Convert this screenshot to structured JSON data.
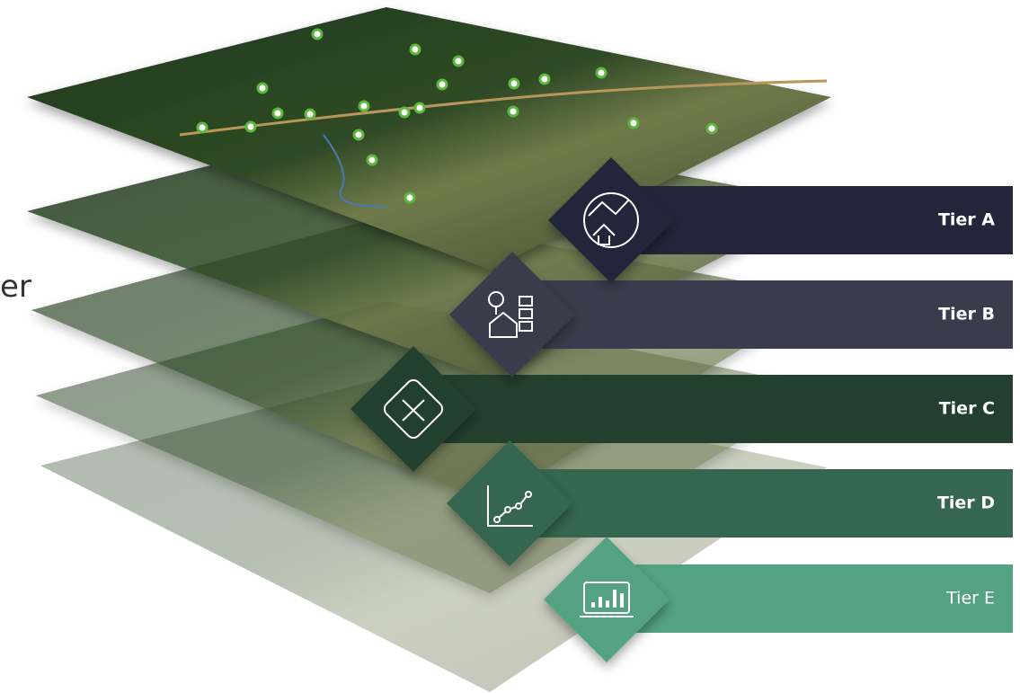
{
  "side_text": "er",
  "tiers": [
    {
      "label": "Tier A"
    },
    {
      "label": "Tier B"
    },
    {
      "label": "Tier C"
    },
    {
      "label": "Tier D"
    },
    {
      "label": "Tier E"
    }
  ]
}
